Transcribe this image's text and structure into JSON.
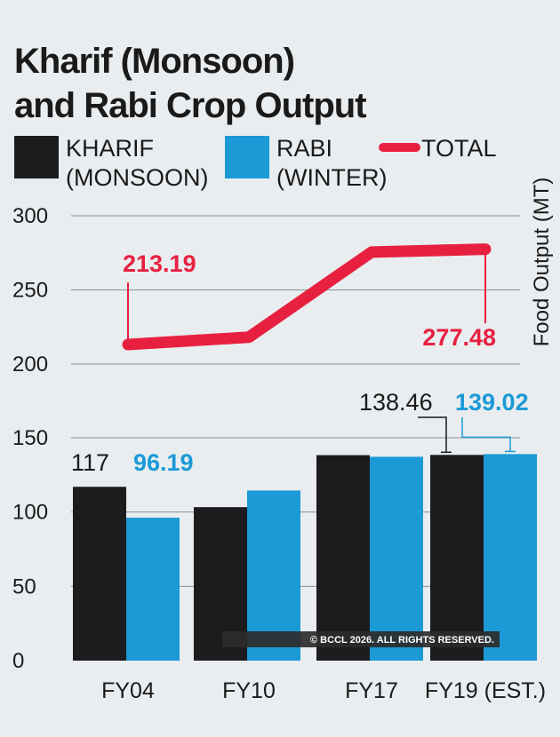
{
  "title_line1": "Kharif (Monsoon)",
  "title_line2": "and Rabi Crop Output",
  "legend": {
    "kharif_line1": "KHARIF",
    "kharif_line2": "(MONSOON)",
    "rabi_line1": "RABI",
    "rabi_line2": "(WINTER)",
    "total": "TOTAL"
  },
  "copyright": "© BCCL 2026. ALL RIGHTS RESERVED.",
  "colors": {
    "kharif": "#1c1c1e",
    "rabi": "#1b9ad6",
    "total": "#e8203f"
  },
  "chart_data": [
    {
      "type": "bar",
      "categories": [
        "FY04",
        "FY10",
        "FY17",
        "FY19 (EST.)"
      ],
      "series": [
        {
          "name": "KHARIF (MONSOON)",
          "values": [
            117,
            103.3,
            138.3,
            138.46
          ]
        },
        {
          "name": "RABI (WINTER)",
          "values": [
            96.19,
            114.5,
            137.2,
            139.02
          ]
        }
      ],
      "yticks": [
        0,
        50,
        100,
        150
      ],
      "ylim": [
        0,
        150
      ],
      "data_labels": {
        "kharif_fy04": "117",
        "rabi_fy04": "96.19",
        "kharif_fy19": "138.46",
        "rabi_fy19": "139.02"
      }
    },
    {
      "type": "line",
      "x": [
        "FY04",
        "FY10",
        "FY17",
        "FY19 (EST.)"
      ],
      "series": [
        {
          "name": "TOTAL",
          "values": [
            213.19,
            218.1,
            275.5,
            277.48
          ]
        }
      ],
      "yticks": [
        200,
        250,
        300
      ],
      "ylim": [
        200,
        300
      ],
      "ylabel": "Food Output (MT)",
      "data_labels": {
        "fy04": "213.19",
        "fy19": "277.48"
      }
    }
  ]
}
